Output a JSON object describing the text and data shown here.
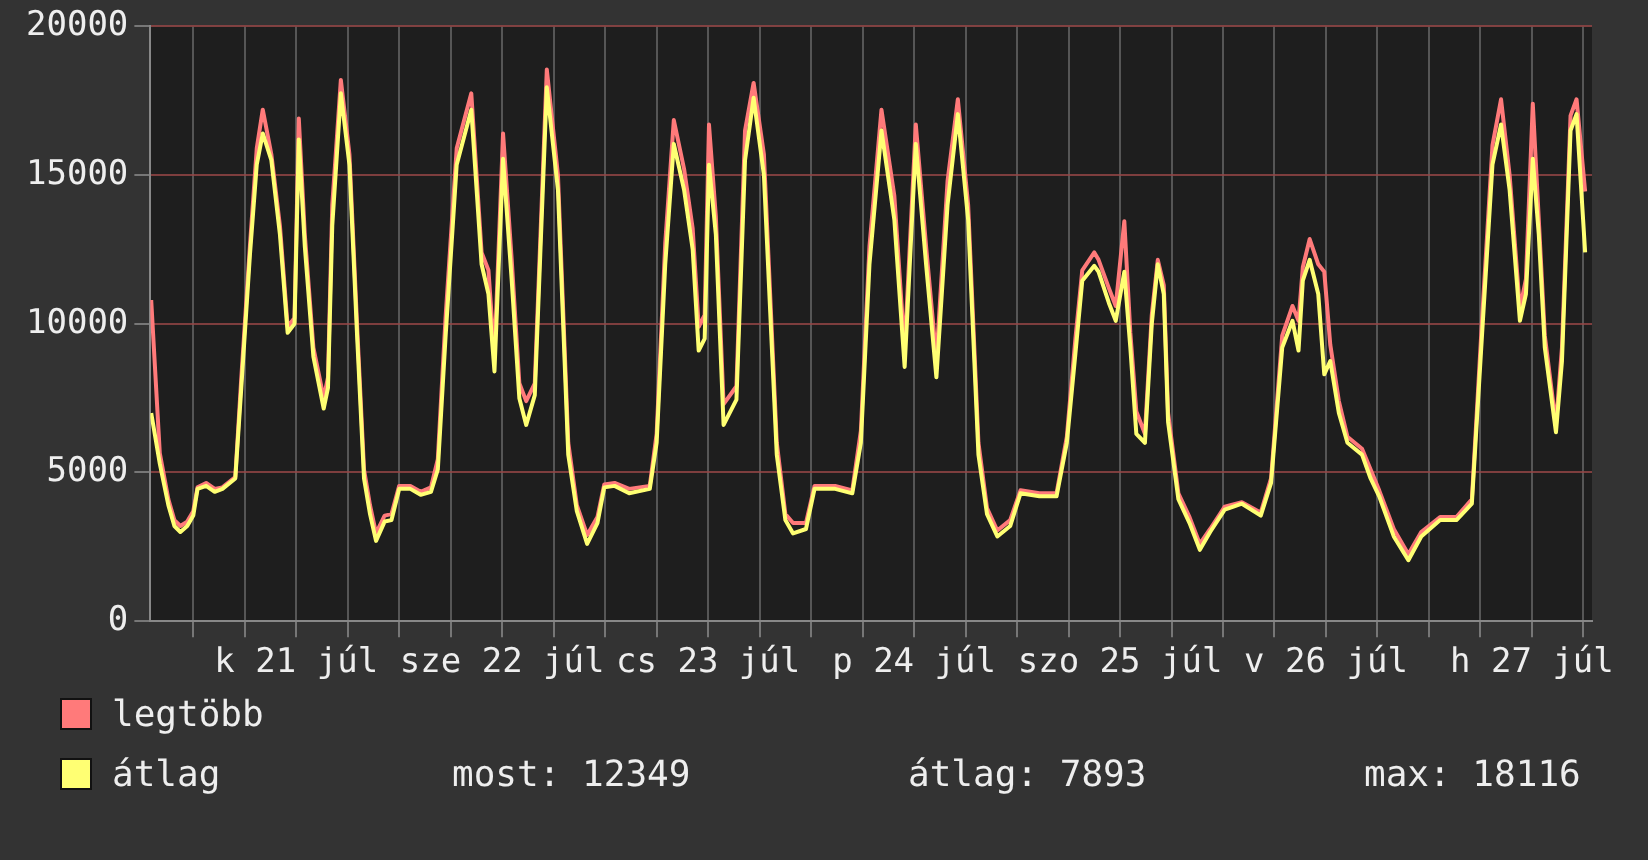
{
  "chart_data": {
    "type": "line",
    "x": [
      "--07-20T19:06",
      "--07-20T20:06",
      "--07-20T21:06",
      "--07-20T21:48",
      "--07-20T22:30",
      "--07-20T23:18",
      "--07-21T00:00",
      "--07-21T00:30",
      "--07-21T01:30",
      "--07-21T02:30",
      "--07-21T03:24",
      "--07-21T04:54",
      "--07-21T05:36",
      "--07-21T06:36",
      "--07-21T07:24",
      "--07-21T08:06",
      "--07-21T09:06",
      "--07-21T10:06",
      "--07-21T11:00",
      "--07-21T11:48",
      "--07-21T12:18",
      "--07-21T13:00",
      "--07-21T14:00",
      "--07-21T15:12",
      "--07-21T15:42",
      "--07-21T16:12",
      "--07-21T17:12",
      "--07-21T18:12",
      "--07-21T19:06",
      "--07-21T19:54",
      "--07-21T20:36",
      "--07-21T21:18",
      "--07-21T22:18",
      "--07-21T23:06",
      "--07-22T00:00",
      "--07-22T01:18",
      "--07-22T02:30",
      "--07-22T03:42",
      "--07-22T04:30",
      "--07-22T05:24",
      "--07-22T06:42",
      "--07-22T08:24",
      "--07-22T09:36",
      "--07-22T10:24",
      "--07-22T11:06",
      "--07-22T12:06",
      "--07-22T13:06",
      "--07-22T14:00",
      "--07-22T14:48",
      "--07-22T15:48",
      "--07-22T17:12",
      "--07-22T18:30",
      "--07-22T19:42",
      "--07-22T20:42",
      "--07-22T21:54",
      "--07-22T23:06",
      "--07-22T23:54",
      "--07-23T01:06",
      "--07-23T02:48",
      "--07-23T05:12",
      "--07-23T06:00",
      "--07-23T07:00",
      "--07-23T08:00",
      "--07-23T09:12",
      "--07-23T10:12",
      "--07-23T10:54",
      "--07-23T11:36",
      "--07-23T12:06",
      "--07-23T12:54",
      "--07-23T13:48",
      "--07-23T15:18",
      "--07-23T16:18",
      "--07-23T17:18",
      "--07-23T18:30",
      "--07-23T20:00",
      "--07-23T21:00",
      "--07-23T21:54",
      "--07-23T23:24",
      "--07-24T00:24",
      "--07-24T02:48",
      "--07-24T04:48",
      "--07-24T05:48",
      "--07-24T06:48",
      "--07-24T08:12",
      "--07-24T09:42",
      "--07-24T10:54",
      "--07-24T12:12",
      "--07-24T13:24",
      "--07-24T14:36",
      "--07-24T15:54",
      "--07-24T17:06",
      "--07-24T18:18",
      "--07-24T19:30",
      "--07-24T20:30",
      "--07-24T21:42",
      "--07-24T23:12",
      "--07-25T00:24",
      "--07-25T02:36",
      "--07-25T04:36",
      "--07-25T05:48",
      "--07-25T06:48",
      "--07-25T07:36",
      "--07-25T09:00",
      "--07-25T09:30",
      "--07-25T10:42",
      "--07-25T11:30",
      "--07-25T12:30",
      "--07-25T13:12",
      "--07-25T13:54",
      "--07-25T14:54",
      "--07-25T15:42",
      "--07-25T16:24",
      "--07-25T17:06",
      "--07-25T17:36",
      "--07-25T18:48",
      "--07-25T20:06",
      "--07-25T21:18",
      "--07-25T22:30",
      "--07-26T00:12",
      "--07-26T02:12",
      "--07-26T04:24",
      "--07-26T05:36",
      "--07-26T06:54",
      "--07-26T08:06",
      "--07-26T08:48",
      "--07-26T09:18",
      "--07-26T10:06",
      "--07-26T11:06",
      "--07-26T11:48",
      "--07-26T12:30",
      "--07-26T13:30",
      "--07-26T14:30",
      "--07-26T16:12",
      "--07-26T17:12",
      "--07-26T18:12",
      "--07-26T19:54",
      "--07-26T21:36",
      "--07-26T23:06",
      "--07-27T01:18",
      "--07-27T03:12",
      "--07-27T05:00",
      "--07-27T06:12",
      "--07-27T07:24",
      "--07-27T08:24",
      "--07-27T09:24",
      "--07-27T10:36",
      "--07-27T11:18",
      "--07-27T12:06",
      "--07-27T12:48",
      "--07-27T13:30",
      "--07-27T14:48",
      "--07-27T15:30",
      "--07-27T16:30",
      "--07-27T17:12",
      "--07-27T18:12"
    ],
    "series": [
      {
        "name": "legtöbb",
        "color": "#ff7a7a",
        "values": [
          10800,
          5650,
          4100,
          3400,
          3200,
          3350,
          3700,
          4500,
          4650,
          4450,
          4500,
          4850,
          8200,
          12600,
          15900,
          17200,
          15700,
          13300,
          9900,
          10200,
          16900,
          13000,
          9200,
          7500,
          8200,
          14000,
          18200,
          15700,
          9900,
          5100,
          3900,
          2950,
          3550,
          3600,
          4550,
          4550,
          4350,
          4500,
          5450,
          10200,
          15900,
          17750,
          12400,
          11800,
          8900,
          16400,
          12200,
          8000,
          7400,
          8000,
          18550,
          15000,
          6000,
          3900,
          2900,
          3500,
          4600,
          4650,
          4450,
          4550,
          6300,
          12700,
          16850,
          15200,
          13200,
          9900,
          10300,
          16700,
          13600,
          7300,
          7900,
          16500,
          18100,
          15700,
          6000,
          3600,
          3300,
          3300,
          4550,
          4550,
          4400,
          6400,
          12600,
          17200,
          14300,
          9100,
          16700,
          12600,
          8800,
          14800,
          17550,
          14000,
          6000,
          3800,
          3050,
          3400,
          4400,
          4300,
          4300,
          6200,
          9500,
          11800,
          12400,
          12150,
          11200,
          10600,
          13450,
          9700,
          7050,
          6300,
          10300,
          12150,
          11300,
          7000,
          4300,
          3500,
          2600,
          3100,
          3850,
          4000,
          3650,
          4800,
          9600,
          10600,
          10100,
          11900,
          12850,
          12000,
          11750,
          9300,
          7400,
          6200,
          5800,
          5100,
          4400,
          3100,
          2250,
          3000,
          3500,
          3500,
          4100,
          10200,
          16000,
          17550,
          15000,
          10500,
          11500,
          17400,
          13500,
          9600,
          6600,
          9200,
          17000,
          17550,
          14450
        ]
      },
      {
        "name": "átlag",
        "color": "#ffff73",
        "values": [
          7000,
          5300,
          3900,
          3200,
          3000,
          3200,
          3550,
          4450,
          4550,
          4350,
          4450,
          4800,
          7850,
          12300,
          15350,
          16400,
          15500,
          13000,
          9700,
          10000,
          16200,
          12600,
          8900,
          7150,
          7850,
          13300,
          17750,
          15350,
          9550,
          4800,
          3600,
          2700,
          3350,
          3400,
          4450,
          4450,
          4250,
          4350,
          5100,
          9550,
          15350,
          17200,
          12000,
          11000,
          8400,
          15550,
          11500,
          7500,
          6600,
          7600,
          17950,
          14500,
          5600,
          3700,
          2600,
          3300,
          4500,
          4550,
          4300,
          4450,
          6000,
          12000,
          16050,
          14500,
          12500,
          9100,
          9500,
          15350,
          13000,
          6600,
          7450,
          15500,
          17600,
          15000,
          5600,
          3400,
          2950,
          3100,
          4450,
          4450,
          4300,
          6000,
          12000,
          16500,
          13500,
          8550,
          16050,
          12000,
          8200,
          14000,
          17050,
          13500,
          5600,
          3600,
          2850,
          3200,
          4300,
          4200,
          4200,
          6000,
          9000,
          11450,
          11950,
          11750,
          10700,
          10100,
          11750,
          9200,
          6300,
          6000,
          10000,
          12000,
          11000,
          6700,
          4100,
          3300,
          2400,
          3000,
          3750,
          3950,
          3550,
          4650,
          9200,
          10100,
          9100,
          11450,
          12150,
          11000,
          8300,
          8750,
          7000,
          6000,
          5600,
          4800,
          4200,
          2850,
          2050,
          2850,
          3400,
          3400,
          3950,
          9700,
          15350,
          16700,
          14500,
          10100,
          11000,
          15550,
          13000,
          9200,
          6350,
          8750,
          16500,
          17050,
          12400
        ]
      }
    ],
    "xlim": [
      "--07-20T19:00",
      "--07-27T19:00"
    ],
    "xticks": [
      {
        "value": "--07-21T00:00",
        "label": null
      },
      {
        "value": "--07-21T06:00",
        "label": null
      },
      {
        "value": "--07-21T12:00",
        "label": "k 21 júl"
      },
      {
        "value": "--07-21T18:00",
        "label": null
      },
      {
        "value": "--07-22T00:00",
        "label": null
      },
      {
        "value": "--07-22T06:00",
        "label": null
      },
      {
        "value": "--07-22T12:00",
        "label": "sze 22 júl"
      },
      {
        "value": "--07-22T18:00",
        "label": null
      },
      {
        "value": "--07-23T00:00",
        "label": null
      },
      {
        "value": "--07-23T06:00",
        "label": null
      },
      {
        "value": "--07-23T12:00",
        "label": "cs 23 júl"
      },
      {
        "value": "--07-23T18:00",
        "label": null
      },
      {
        "value": "--07-24T00:00",
        "label": null
      },
      {
        "value": "--07-24T06:00",
        "label": null
      },
      {
        "value": "--07-24T12:00",
        "label": "p 24 júl"
      },
      {
        "value": "--07-24T18:00",
        "label": null
      },
      {
        "value": "--07-25T00:00",
        "label": null
      },
      {
        "value": "--07-25T06:00",
        "label": null
      },
      {
        "value": "--07-25T12:00",
        "label": "szo 25 júl"
      },
      {
        "value": "--07-25T18:00",
        "label": null
      },
      {
        "value": "--07-26T00:00",
        "label": null
      },
      {
        "value": "--07-26T06:00",
        "label": null
      },
      {
        "value": "--07-26T12:00",
        "label": "v 26 júl"
      },
      {
        "value": "--07-26T18:00",
        "label": null
      },
      {
        "value": "--07-27T00:00",
        "label": null
      },
      {
        "value": "--07-27T06:00",
        "label": null
      },
      {
        "value": "--07-27T12:00",
        "label": "h 27 júl"
      },
      {
        "value": "--07-27T18:00",
        "label": null
      }
    ],
    "ylim": [
      0,
      20000
    ],
    "yticks": [
      0,
      5000,
      10000,
      15000,
      20000
    ],
    "grid": true,
    "legend": "bottom",
    "marker": "none",
    "line_style": "solid",
    "annotations": [
      "most: 12349",
      "átlag: 7893",
      "max: 18116"
    ]
  }
}
